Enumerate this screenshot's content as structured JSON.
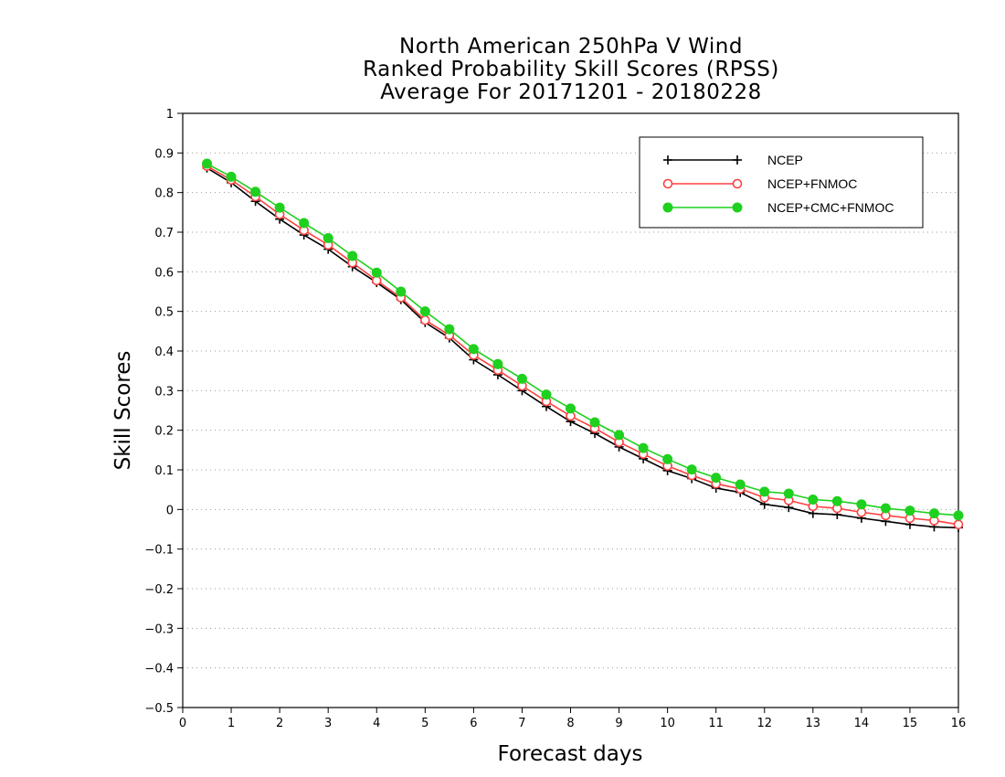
{
  "chart_data": {
    "type": "line",
    "title": [
      "North American 250hPa V Wind",
      "Ranked Probability Skill Scores (RPSS)",
      "Average For 20171201 - 20180228"
    ],
    "xlabel": "Forecast days",
    "ylabel": "Skill Scores",
    "xlim": [
      0,
      16
    ],
    "ylim": [
      -0.5,
      1
    ],
    "xticks": [
      "0",
      "1",
      "2",
      "3",
      "4",
      "5",
      "6",
      "7",
      "8",
      "9",
      "10",
      "11",
      "12",
      "13",
      "14",
      "15",
      "16"
    ],
    "yticks": [
      "1",
      "0.9",
      "0.8",
      "0.7",
      "0.6",
      "0.5",
      "0.4",
      "0.3",
      "0.2",
      "0.1",
      "0",
      "−0.1",
      "−0.2",
      "−0.3",
      "−0.4",
      "−0.5"
    ],
    "ytick_values": [
      1,
      0.9,
      0.8,
      0.7,
      0.6,
      0.5,
      0.4,
      0.3,
      0.2,
      0.1,
      0,
      -0.1,
      -0.2,
      -0.3,
      -0.4,
      -0.5
    ],
    "grid": "horizontal-dotted",
    "legend_position": "top-right",
    "x": [
      0.5,
      1,
      1.5,
      2,
      2.5,
      3,
      3.5,
      4,
      4.5,
      5,
      5.5,
      6,
      6.5,
      7,
      7.5,
      8,
      8.5,
      9,
      9.5,
      10,
      10.5,
      11,
      11.5,
      12,
      12.5,
      13,
      13.5,
      14,
      14.5,
      15,
      15.5,
      16
    ],
    "series": [
      {
        "name": "NCEP",
        "color": "#000000",
        "marker": "plus",
        "values": [
          0.862,
          0.825,
          0.778,
          0.733,
          0.693,
          0.657,
          0.613,
          0.573,
          0.53,
          0.472,
          0.433,
          0.378,
          0.34,
          0.3,
          0.26,
          0.222,
          0.192,
          0.158,
          0.128,
          0.098,
          0.078,
          0.054,
          0.043,
          0.013,
          0.005,
          -0.01,
          -0.013,
          -0.022,
          -0.03,
          -0.038,
          -0.044,
          -0.046
        ]
      },
      {
        "name": "NCEP+FNMOC",
        "color": "#ff4040",
        "marker": "open-circle",
        "values": [
          0.867,
          0.832,
          0.79,
          0.745,
          0.705,
          0.668,
          0.623,
          0.578,
          0.535,
          0.478,
          0.44,
          0.39,
          0.352,
          0.312,
          0.273,
          0.236,
          0.205,
          0.17,
          0.14,
          0.11,
          0.086,
          0.065,
          0.052,
          0.03,
          0.023,
          0.008,
          0.003,
          -0.007,
          -0.015,
          -0.022,
          -0.028,
          -0.038
        ]
      },
      {
        "name": "NCEP+CMC+FNMOC",
        "color": "#1fd01f",
        "marker": "filled-circle",
        "values": [
          0.873,
          0.84,
          0.802,
          0.762,
          0.723,
          0.685,
          0.64,
          0.598,
          0.55,
          0.5,
          0.455,
          0.405,
          0.367,
          0.33,
          0.29,
          0.255,
          0.22,
          0.188,
          0.155,
          0.127,
          0.101,
          0.08,
          0.063,
          0.045,
          0.04,
          0.025,
          0.021,
          0.013,
          0.003,
          -0.003,
          -0.01,
          -0.015
        ]
      }
    ]
  }
}
